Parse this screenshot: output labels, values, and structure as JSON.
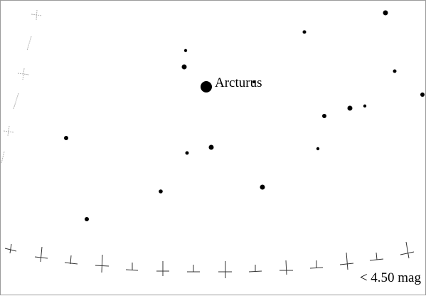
{
  "star_labels": {
    "arcturus": "Arcturus"
  },
  "magnitude_limit": "< 4.50 mag",
  "colors": {
    "stars": "#000000",
    "grid_ticks_bottom": "#333333",
    "grid_ticks_left": "#b0b0b0",
    "frame": "#9a9a9a",
    "background": "#ffffff"
  }
}
